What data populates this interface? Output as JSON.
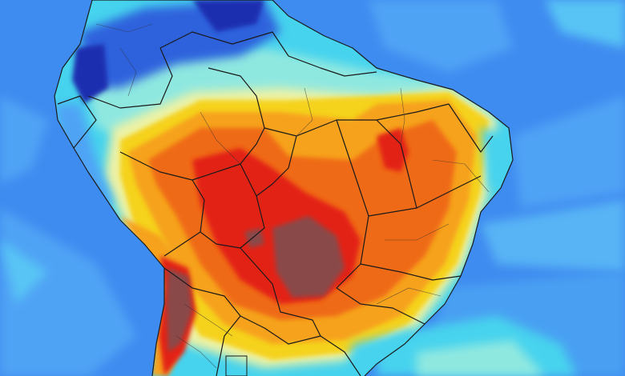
{
  "map": {
    "region": "South America",
    "kind": "temperature-anomaly",
    "palette": {
      "ocean_deep": "#3f8cf0",
      "ocean_mid": "#4fa3f5",
      "ocean_cyan": "#58c4f5",
      "cyan": "#46d3ee",
      "aqua": "#8fe8e0",
      "pale": "#eef2a4",
      "yellow": "#f5d21c",
      "orange": "#f6a21e",
      "orange_red": "#ef6a14",
      "red": "#e32018",
      "brown": "#8a4a4a",
      "blue": "#2f62dd",
      "navy": "#1b2fb0",
      "border": "#1a1a1a"
    }
  }
}
